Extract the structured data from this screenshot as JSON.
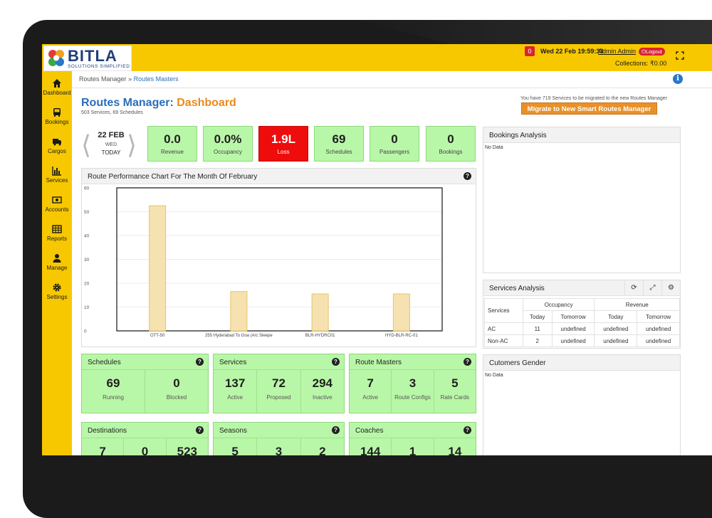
{
  "header": {
    "logo_text": "BITLA",
    "logo_tagline": "SOLUTIONS SIMPLIFIED",
    "notifications": "0",
    "datetime": "Wed 22 Feb 19:59:33",
    "user": "Admin Admin",
    "logout_label": "Logout",
    "collections": "Collections: ₹0.00"
  },
  "sidebar": {
    "items": [
      {
        "label": "Dashboard",
        "icon": "home-icon"
      },
      {
        "label": "Bookings",
        "icon": "bus-icon"
      },
      {
        "label": "Cargos",
        "icon": "truck-icon"
      },
      {
        "label": "Services",
        "icon": "bar-chart-icon"
      },
      {
        "label": "Accounts",
        "icon": "money-icon"
      },
      {
        "label": "Reports",
        "icon": "table-icon"
      },
      {
        "label": "Manage",
        "icon": "user-icon"
      },
      {
        "label": "Settings",
        "icon": "gear-icon"
      }
    ]
  },
  "breadcrumb": {
    "root": "Routes Manager",
    "sep": "»",
    "current": "Routes Masters"
  },
  "page": {
    "title_main": "Routes Manager:",
    "title_accent": "Dashboard",
    "subtitle": "503 Services, 69 Schedules",
    "migrate_note": "You have 719 Services to be migrated to the new Routes Manager",
    "migrate_button": "Migrate to New Smart Routes Manager"
  },
  "date": {
    "main": "22 FEB",
    "day": "WED",
    "today": "TODAY"
  },
  "kpis": [
    {
      "value": "0.0",
      "caption": "Revenue"
    },
    {
      "value": "0.0%",
      "caption": "Occupancy"
    },
    {
      "value": "1.9L",
      "caption": "Loss"
    },
    {
      "value": "69",
      "caption": "Schedules"
    },
    {
      "value": "0",
      "caption": "Passengers"
    },
    {
      "value": "0",
      "caption": "Bookings"
    }
  ],
  "chart_panel": {
    "title": "Route Performance Chart For The Month Of February"
  },
  "chart_data": {
    "type": "bar",
    "title": "Route Performance Chart For The Month Of February",
    "categories": [
      "OTT-50",
      "255 Hyderabad To Goa (A/c Sleepe",
      "BLR-HYDRC01",
      "HYD-BLR-RC-01"
    ],
    "values": [
      52.5,
      16.5,
      15.5,
      15.5
    ],
    "ylim": [
      0,
      60
    ],
    "yticks": [
      "0",
      "10",
      "20",
      "30",
      "40",
      "50",
      "60"
    ],
    "grid": true,
    "bar_color": "#f6e2b0",
    "bar_border": "#e5c36e"
  },
  "cards": [
    {
      "title": "Schedules",
      "cols": [
        {
          "n": "69",
          "c": "Running"
        },
        {
          "n": "0",
          "c": "Blocked"
        }
      ]
    },
    {
      "title": "Services",
      "cols": [
        {
          "n": "137",
          "c": "Active"
        },
        {
          "n": "72",
          "c": "Proposed"
        },
        {
          "n": "294",
          "c": "Inactive"
        }
      ]
    },
    {
      "title": "Route Masters",
      "cols": [
        {
          "n": "7",
          "c": "Active"
        },
        {
          "n": "3",
          "c": "Route Configs"
        },
        {
          "n": "5",
          "c": "Rate Cards"
        }
      ]
    },
    {
      "title": "Destinations",
      "cols": [
        {
          "n": "7",
          "c": ""
        },
        {
          "n": "0",
          "c": ""
        },
        {
          "n": "523",
          "c": ""
        }
      ]
    },
    {
      "title": "Seasons",
      "cols": [
        {
          "n": "5",
          "c": ""
        },
        {
          "n": "3",
          "c": ""
        },
        {
          "n": "2",
          "c": ""
        }
      ]
    },
    {
      "title": "Coaches",
      "cols": [
        {
          "n": "144",
          "c": ""
        },
        {
          "n": "1",
          "c": ""
        },
        {
          "n": "14",
          "c": ""
        }
      ]
    }
  ],
  "bookings_analysis": {
    "title": "Bookings Analysis",
    "nodata": "No Data"
  },
  "services_analysis": {
    "title": "Services Analysis",
    "col_services": "Services",
    "col_occupancy": "Occupancy",
    "col_revenue": "Revenue",
    "sub": [
      "Today",
      "Tomorrow",
      "Today",
      "Tomorrow"
    ],
    "rows": [
      {
        "name": "AC",
        "vals": [
          "11",
          "undefined",
          "undefined",
          "undefined"
        ]
      },
      {
        "name": "Non-AC",
        "vals": [
          "2",
          "undefined",
          "undefined",
          "undefined"
        ]
      }
    ]
  },
  "customers_gender": {
    "title": "Cutomers Gender",
    "nodata": "No Data"
  }
}
